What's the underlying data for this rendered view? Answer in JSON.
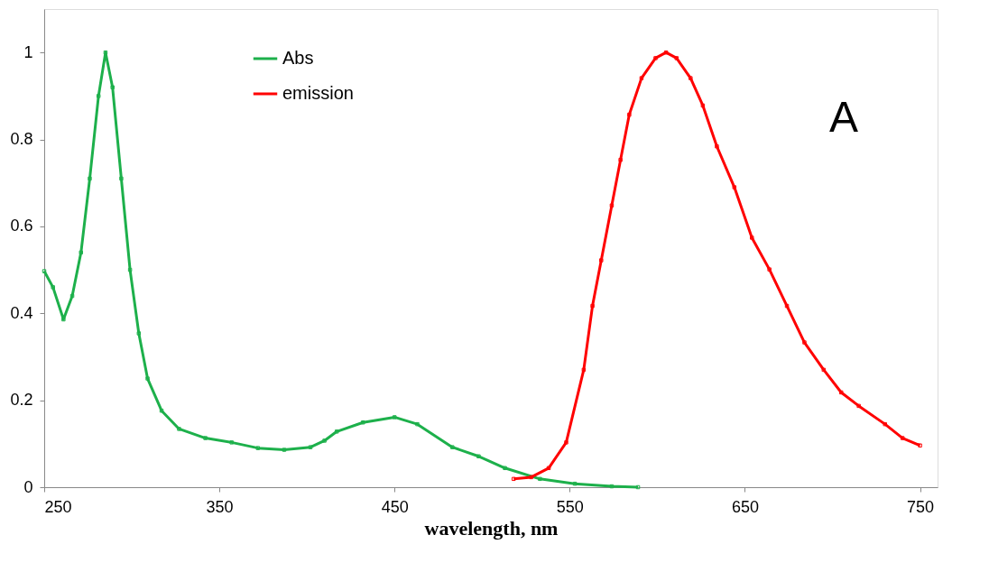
{
  "chart_data": {
    "type": "line",
    "xlabel": "wavelength, nm",
    "xlim": [
      250,
      760
    ],
    "xticks": [
      250,
      350,
      450,
      550,
      650,
      750
    ],
    "ylim": [
      0,
      1.1
    ],
    "yticks": [
      0,
      0.2,
      0.4,
      0.6,
      0.8,
      1
    ],
    "grid": false,
    "legend": "top left",
    "marker": "square",
    "line_style": "solid",
    "annotations": [
      "A"
    ],
    "series": [
      {
        "name": " Abs",
        "color": "#1db04b",
        "x": [
          250,
          255,
          261,
          266,
          271,
          276,
          281,
          285,
          289,
          294,
          299,
          304,
          309,
          317,
          327,
          342,
          357,
          372,
          387,
          402,
          410,
          417,
          432,
          450,
          463,
          483,
          498,
          513,
          533,
          553,
          574,
          589
        ],
        "values": [
          0.497,
          0.46,
          0.386,
          0.44,
          0.54,
          0.71,
          0.9,
          1.0,
          0.92,
          0.71,
          0.5,
          0.354,
          0.25,
          0.176,
          0.134,
          0.113,
          0.103,
          0.09,
          0.086,
          0.092,
          0.107,
          0.128,
          0.149,
          0.161,
          0.145,
          0.092,
          0.071,
          0.044,
          0.019,
          0.008,
          0.002,
          0
        ]
      },
      {
        "name": "emission",
        "color": "#ff0000",
        "x": [
          518,
          528,
          538,
          548,
          558,
          563,
          568,
          574,
          579,
          584,
          591,
          599,
          605,
          611,
          619,
          626,
          634,
          644,
          654,
          664,
          674,
          684,
          695,
          705,
          715,
          730,
          740,
          750
        ],
        "values": [
          0.019,
          0.023,
          0.044,
          0.103,
          0.27,
          0.417,
          0.522,
          0.648,
          0.753,
          0.857,
          0.941,
          0.987,
          1.0,
          0.987,
          0.941,
          0.878,
          0.784,
          0.69,
          0.574,
          0.501,
          0.417,
          0.333,
          0.27,
          0.218,
          0.187,
          0.145,
          0.113,
          0.096
        ]
      }
    ]
  }
}
